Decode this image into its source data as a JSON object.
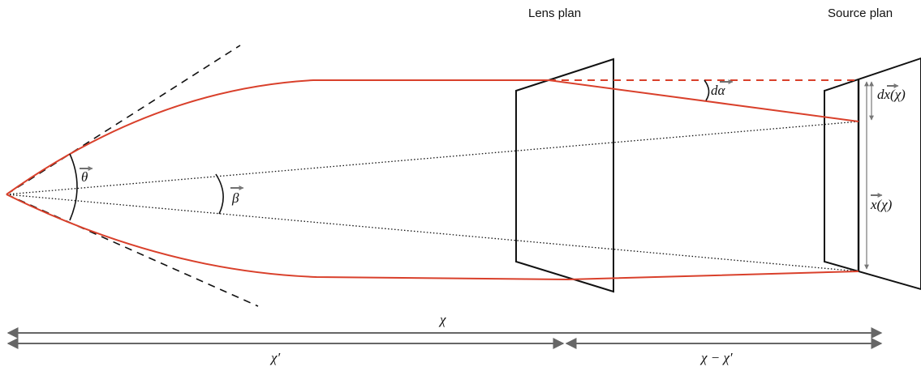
{
  "planes": {
    "lens_title": "Lens plan",
    "source_title": "Source plan"
  },
  "angles": {
    "theta": "θ",
    "beta": "β",
    "d_alpha": "dα"
  },
  "vectors": {
    "dx_chi": "dx(χ)",
    "x_chi": "x(χ)"
  },
  "distances": {
    "chi": "χ",
    "chi_prime": "χ′",
    "chi_minus_chi_prime": "χ − χ′"
  },
  "colors": {
    "ray": "#d9402b",
    "line": "#111111",
    "arrow": "#666666"
  }
}
